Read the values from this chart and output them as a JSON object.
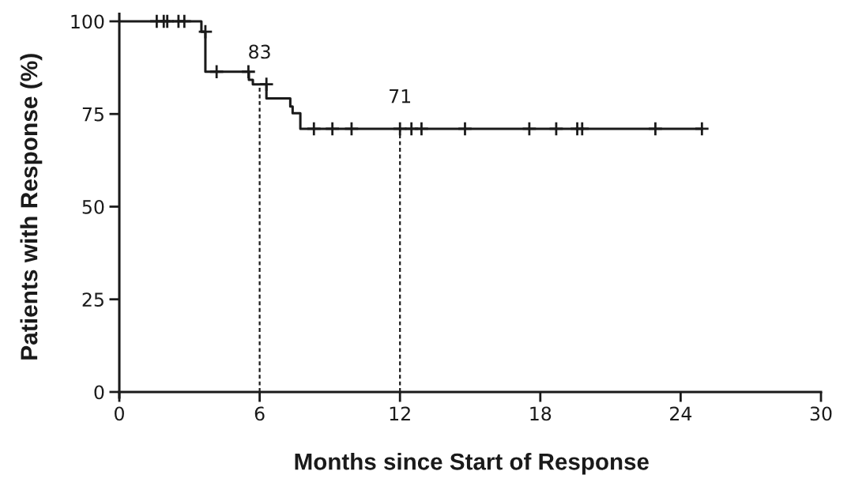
{
  "chart_data": {
    "type": "step",
    "xlabel": "Months since Start of Response",
    "ylabel": "Patients with Response (%)",
    "series": [
      {
        "color": "#1a1a1a",
        "line_style": "solid",
        "x": [
          0,
          3.51,
          3.68,
          5.54,
          5.71,
          6.29,
          7.31,
          7.41,
          7.74,
          24.91
        ],
        "values": [
          100,
          97.2,
          86.4,
          84.2,
          83,
          79.2,
          77,
          75.2,
          71,
          71
        ]
      },
      {
        "type": "scatter",
        "marker": "cross",
        "color": "#1a1a1a",
        "x": [
          1.6,
          1.9,
          2.05,
          2.53,
          2.78,
          3.68,
          4.16,
          5.52,
          6.29,
          8.32,
          9.11,
          9.93,
          12.0,
          12.49,
          12.92,
          14.78,
          17.53,
          18.68,
          19.58,
          19.79,
          22.92,
          24.91
        ],
        "values": [
          100,
          100,
          100,
          100,
          100,
          97.2,
          86.4,
          86.4,
          83,
          71,
          71,
          71,
          71,
          71,
          71,
          71,
          71,
          71,
          71,
          71,
          71,
          71
        ]
      }
    ],
    "ref_lines": [
      {
        "axis": "x",
        "value": 6,
        "line_style": "dashed",
        "color": "#1a1a1a"
      },
      {
        "axis": "x",
        "value": 12,
        "line_style": "dashed",
        "color": "#1a1a1a"
      }
    ],
    "annotations": [
      {
        "text": "83",
        "x": 6,
        "y": 83
      },
      {
        "text": "71",
        "x": 12,
        "y": 71
      }
    ],
    "xlim": [
      0,
      30
    ],
    "xticks": [
      0,
      6,
      12,
      18,
      24,
      30
    ],
    "ylim": [
      -1.5,
      102
    ],
    "yticks": [
      0,
      25,
      50,
      75,
      100
    ]
  }
}
